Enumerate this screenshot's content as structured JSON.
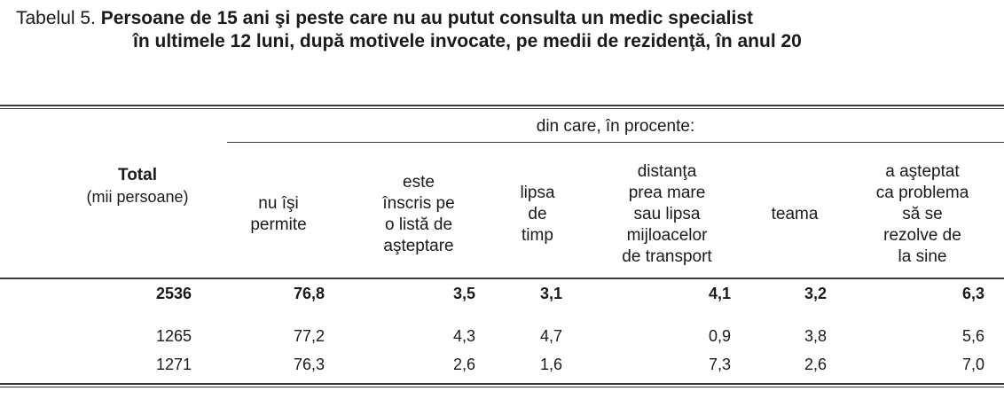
{
  "title": {
    "prefix": "Tabelul 5.",
    "line1": "Persoane de 15 ani şi peste care nu au putut consulta un medic specialist",
    "line2": "în ultimele 12 luni, după motivele invocate, pe medii de rezidenţă, în anul 20"
  },
  "table": {
    "group_header": "din care, în procente:",
    "total_header": "Total",
    "total_unit": "(mii persoane)",
    "columns": [
      "nu îşi\npermite",
      "este\nînscris pe\no listă de\naşteptare",
      "lipsa\nde\ntimp",
      "distanţa\nprea mare\nsau lipsa\nmijloacelor\nde transport",
      "teama",
      "a aşteptat\nca problema\nsă se\nrezolve de\nla sine"
    ],
    "rows": [
      [
        "2536",
        "76,8",
        "3,5",
        "3,1",
        "4,1",
        "3,2",
        "6,3"
      ],
      [
        "1265",
        "77,2",
        "4,3",
        "4,7",
        "0,9",
        "3,8",
        "5,6"
      ],
      [
        "1271",
        "76,3",
        "2,6",
        "1,6",
        "7,3",
        "2,6",
        "7,0"
      ]
    ]
  }
}
